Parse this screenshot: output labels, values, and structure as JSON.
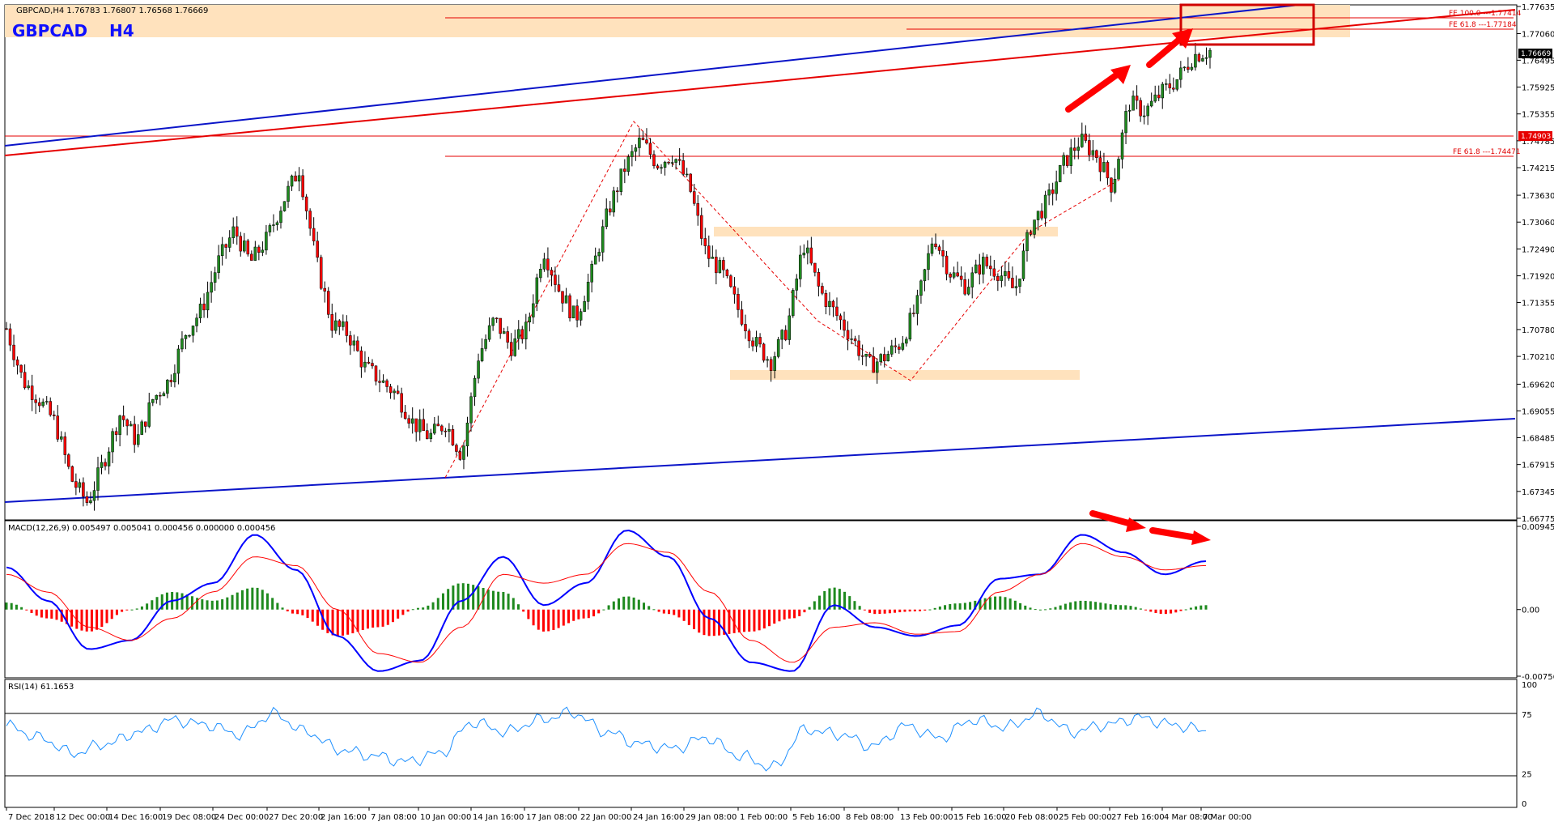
{
  "header": {
    "info": "GBPCAD,H4  1.76783 1.76807 1.76568 1.76669",
    "symbol": "GBPCAD",
    "timeframe": "H4"
  },
  "colors": {
    "bull": "#1f8a1f",
    "bear": "#ff0000",
    "blue_line": "#0a14c8",
    "red_line": "#e60000",
    "zone": "#ffe2bd",
    "macd_line": "#0000ff",
    "signal": "#ff0000",
    "rsi": "#1e90ff",
    "arrow": "#ff0000"
  },
  "fib_labels": {
    "fe100": "FE 100.0 ---1.77414",
    "fe618_top": "FE 61.8 ---1.77184",
    "fe618_low": "FE 61.8 ---1.74471"
  },
  "price_tags": {
    "current": "1.76669",
    "level": "1.74903"
  },
  "indicators": {
    "macd_label": "MACD(12,26,9) 0.005497 0.005041 0.000456 0.000000 0.000456",
    "rsi_label": "RSI(14) 61.1653"
  },
  "chart_data": [
    {
      "type": "candlestick",
      "title": "GBPCAD,H4",
      "y_ticks": [
        "1.77635",
        "1.77060",
        "1.76495",
        "1.75925",
        "1.75355",
        "1.74785",
        "1.74215",
        "1.73630",
        "1.73060",
        "1.72490",
        "1.71920",
        "1.71355",
        "1.70780",
        "1.70210",
        "1.69620",
        "1.69055",
        "1.68485",
        "1.67915",
        "1.67345",
        "1.66775"
      ],
      "ylim": [
        1.66775,
        1.77635
      ],
      "x_ticks": [
        "7 Dec 2018",
        "12 Dec 00:00",
        "14 Dec 16:00",
        "19 Dec 08:00",
        "24 Dec 00:00",
        "27 Dec 20:00",
        "2 Jan 16:00",
        "7 Jan 08:00",
        "10 Jan 00:00",
        "14 Jan 16:00",
        "17 Jan 08:00",
        "22 Jan 00:00",
        "24 Jan 16:00",
        "29 Jan 08:00",
        "1 Feb 00:00",
        "5 Feb 16:00",
        "8 Feb 08:00",
        "13 Feb 00:00",
        "15 Feb 16:00",
        "20 Feb 08:00",
        "25 Feb 00:00",
        "27 Feb 16:00",
        "4 Mar 08:00",
        "7 Mar 00:00"
      ],
      "close_path": [
        1.708,
        1.697,
        1.693,
        1.688,
        1.676,
        1.671,
        1.68,
        1.69,
        1.684,
        1.693,
        1.697,
        1.707,
        1.712,
        1.722,
        1.729,
        1.722,
        1.727,
        1.735,
        1.742,
        1.723,
        1.709,
        1.707,
        1.7,
        1.697,
        1.694,
        1.688,
        1.685,
        1.688,
        1.681,
        1.702,
        1.71,
        1.704,
        1.708,
        1.725,
        1.716,
        1.71,
        1.72,
        1.733,
        1.742,
        1.748,
        1.743,
        1.745,
        1.738,
        1.724,
        1.72,
        1.712,
        1.705,
        1.701,
        1.708,
        1.726,
        1.716,
        1.711,
        1.706,
        1.7,
        1.702,
        1.705,
        1.713,
        1.728,
        1.72,
        1.717,
        1.722,
        1.72,
        1.716,
        1.73,
        1.735,
        1.743,
        1.748,
        1.745,
        1.738,
        1.756,
        1.754,
        1.758,
        1.761,
        1.766,
        1.767
      ],
      "horizontal_levels": [
        {
          "name": "FE 100.0",
          "value": 1.77414
        },
        {
          "name": "FE 61.8",
          "value": 1.77184
        },
        {
          "name": "level",
          "value": 1.74903
        },
        {
          "name": "FE 61.8",
          "value": 1.74471
        }
      ]
    },
    {
      "type": "line",
      "name": "MACD(12,26,9)",
      "y_ticks": [
        "0.00945",
        "0.00",
        "-0.007567"
      ],
      "ylim": [
        -0.007567,
        0.00945
      ],
      "main": [
        0.0048,
        0.001,
        -0.0045,
        -0.0035,
        0.001,
        0.003,
        0.0085,
        0.0045,
        -0.003,
        -0.007,
        -0.0058,
        0.001,
        0.006,
        0.0005,
        0.003,
        0.009,
        0.006,
        -0.001,
        -0.006,
        -0.007,
        0.0005,
        -0.002,
        -0.003,
        -0.0018,
        0.0035,
        0.004,
        0.0085,
        0.0065,
        0.004,
        0.0055
      ],
      "signal": [
        0.004,
        0.002,
        -0.002,
        -0.0035,
        -0.001,
        0.002,
        0.006,
        0.005,
        0.0,
        -0.005,
        -0.006,
        -0.002,
        0.004,
        0.003,
        0.004,
        0.0075,
        0.0065,
        0.002,
        -0.0035,
        -0.006,
        -0.002,
        -0.0015,
        -0.0028,
        -0.0025,
        0.002,
        0.004,
        0.0075,
        0.006,
        0.0045,
        0.005
      ]
    },
    {
      "type": "line",
      "name": "RSI(14)",
      "y_ticks": [
        "100",
        "75",
        "25",
        "0"
      ],
      "ylim": [
        0,
        100
      ],
      "values": [
        65,
        55,
        42,
        50,
        60,
        70,
        66,
        58,
        75,
        60,
        45,
        40,
        35,
        42,
        68,
        60,
        70,
        76,
        60,
        50,
        46,
        55,
        40,
        30,
        62,
        58,
        48,
        65,
        55,
        70,
        64,
        75,
        60,
        66,
        72,
        66,
        61
      ]
    }
  ]
}
